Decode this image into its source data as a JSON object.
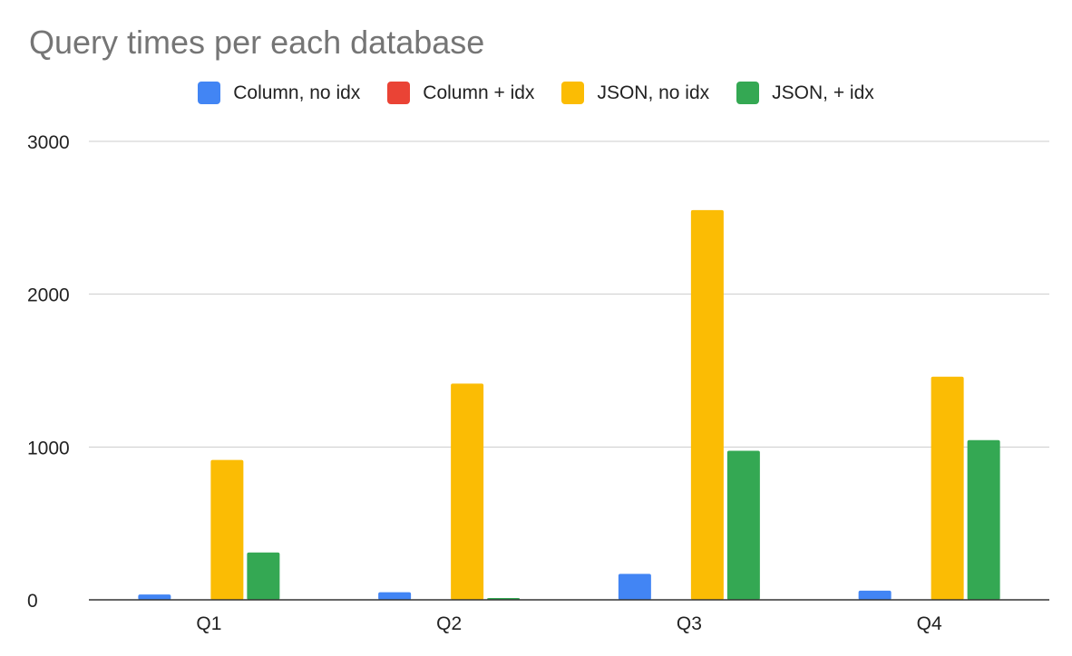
{
  "chart_data": {
    "type": "bar",
    "title": "Query times per each database",
    "xlabel": "",
    "ylabel": "",
    "categories": [
      "Q1",
      "Q2",
      "Q3",
      "Q4"
    ],
    "ylim": [
      0,
      3000
    ],
    "yticks": [
      0,
      1000,
      2000,
      3000
    ],
    "grid": true,
    "legend_position": "top-center",
    "series": [
      {
        "name": "Column, no idx",
        "color": "#4285F4",
        "values": [
          35,
          50,
          170,
          60
        ]
      },
      {
        "name": "Column + idx",
        "color": "#EA4335",
        "values": [
          2,
          2,
          3,
          2
        ]
      },
      {
        "name": "JSON, no idx",
        "color": "#FBBC04",
        "values": [
          915,
          1415,
          2550,
          1460
        ]
      },
      {
        "name": "JSON, + idx",
        "color": "#34A853",
        "values": [
          310,
          12,
          975,
          1045
        ]
      }
    ]
  }
}
